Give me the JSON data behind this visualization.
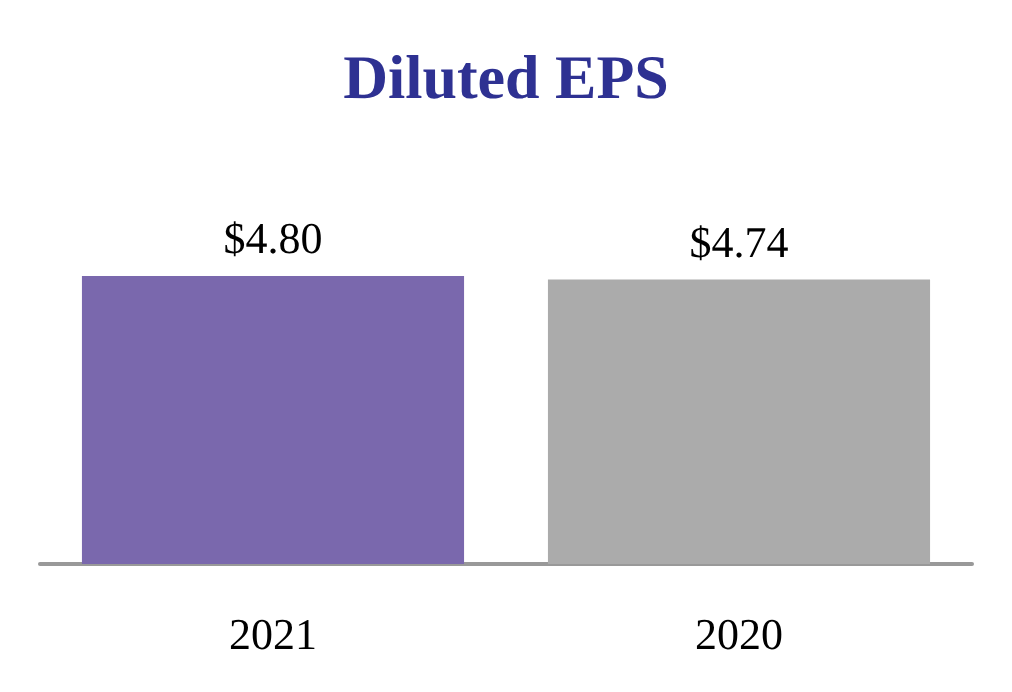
{
  "chart_data": {
    "type": "bar",
    "title": "Diluted EPS",
    "categories": [
      "2021",
      "2020"
    ],
    "values": [
      4.8,
      4.74
    ],
    "colors": [
      "#7a68ad",
      "#ababab"
    ],
    "value_labels": [
      "$4.80",
      "$4.74"
    ]
  }
}
